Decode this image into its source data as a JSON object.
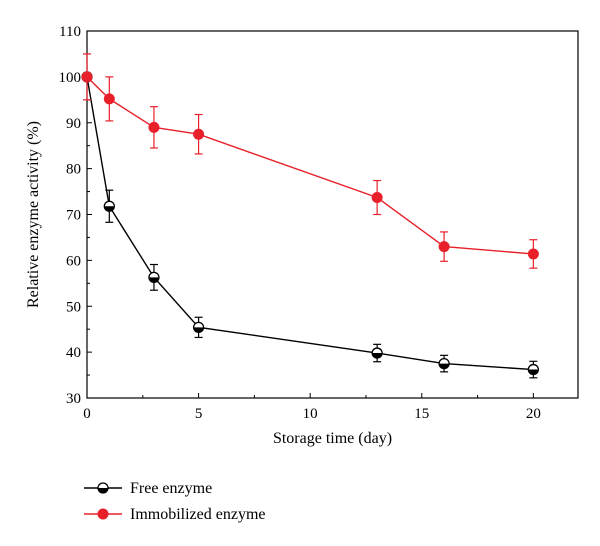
{
  "chart_data": {
    "type": "line",
    "xlabel": "Storage time (day)",
    "ylabel": "Relative enzyme activity (%)",
    "xlim": [
      0,
      22
    ],
    "ylim": [
      30,
      110
    ],
    "x_ticks": [
      0,
      5,
      10,
      15,
      20
    ],
    "y_ticks": [
      30,
      40,
      50,
      60,
      70,
      80,
      90,
      100,
      110
    ],
    "grid": false,
    "legend_position": "bottom-left, below plot",
    "series": [
      {
        "name": "Free enzyme",
        "color": "#000000",
        "marker": "half-filled circle",
        "points": [
          {
            "x": 0,
            "y": 100,
            "err": 0
          },
          {
            "x": 1,
            "y": 71.8,
            "err": 3.5
          },
          {
            "x": 3,
            "y": 56.3,
            "err": 2.8
          },
          {
            "x": 5,
            "y": 45.4,
            "err": 2.2
          },
          {
            "x": 13,
            "y": 39.8,
            "err": 1.9
          },
          {
            "x": 16,
            "y": 37.5,
            "err": 1.8
          },
          {
            "x": 20,
            "y": 36.2,
            "err": 1.8
          }
        ]
      },
      {
        "name": "Immobilized enzyme",
        "color": "#e8202a",
        "marker": "filled circle",
        "points": [
          {
            "x": 0,
            "y": 100,
            "err": 5.0
          },
          {
            "x": 1,
            "y": 95.2,
            "err": 4.8
          },
          {
            "x": 3,
            "y": 89.0,
            "err": 4.5
          },
          {
            "x": 5,
            "y": 87.5,
            "err": 4.3
          },
          {
            "x": 13,
            "y": 73.7,
            "err": 3.7
          },
          {
            "x": 16,
            "y": 63.0,
            "err": 3.2
          },
          {
            "x": 20,
            "y": 61.4,
            "err": 3.1
          }
        ]
      }
    ]
  }
}
